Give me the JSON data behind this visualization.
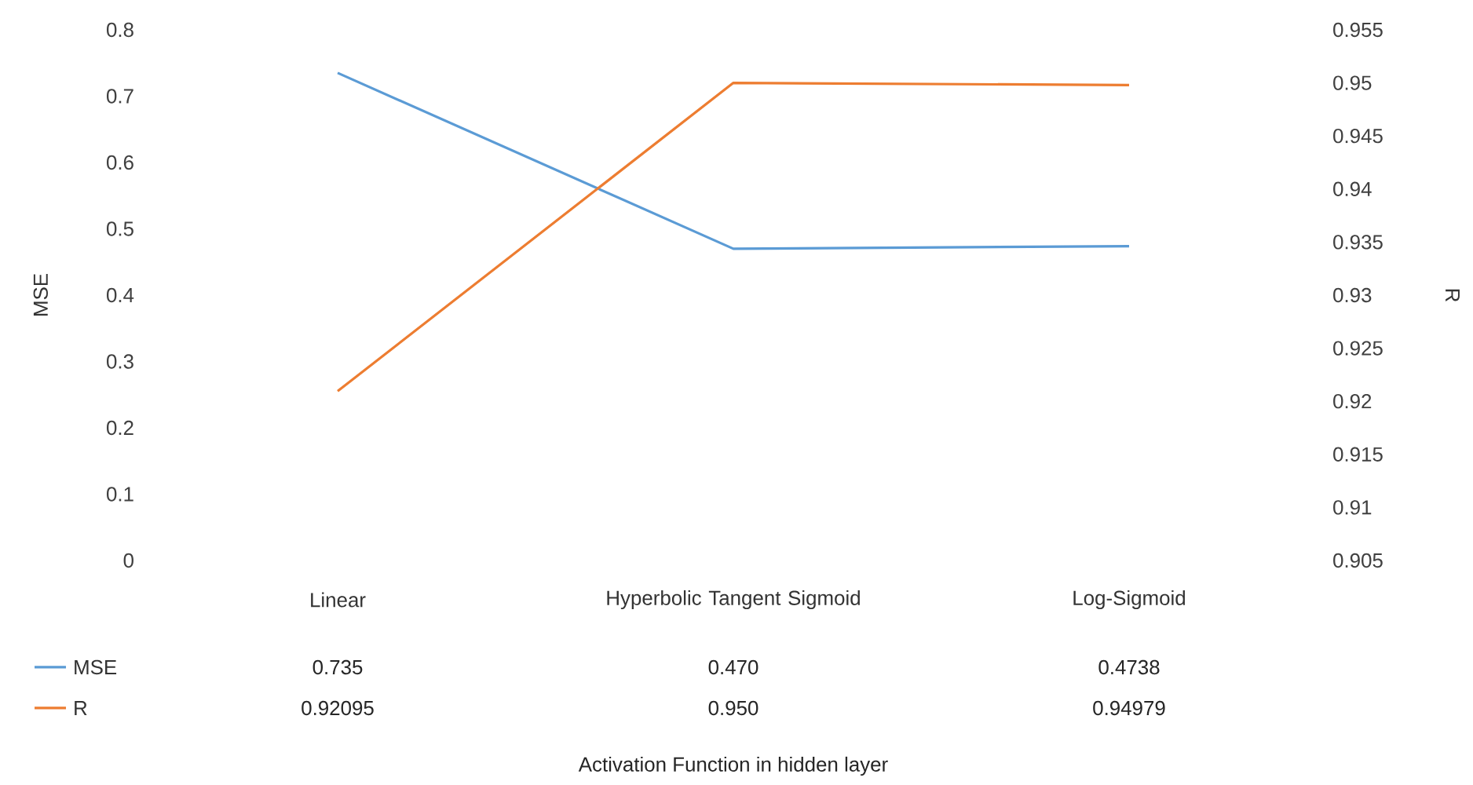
{
  "chart_data": {
    "type": "line",
    "annotations": [
      "Activation Function in hidden layer"
    ],
    "ylabel": "MSE",
    "y2label": "R",
    "categories": [
      "Linear",
      "Hyperbolic Tangent Sigmoid",
      "Log-Sigmoid"
    ],
    "series": [
      {
        "name": "MSE",
        "color": "#5b9bd5",
        "values": [
          0.735,
          0.47,
          0.4738
        ],
        "value_labels": [
          "0.735",
          "0.470",
          "0.4738"
        ]
      },
      {
        "name": "R",
        "color": "#ed7d31",
        "axis": "y2",
        "values": [
          0.92095,
          0.95,
          0.94979
        ],
        "value_labels": [
          "0.92095",
          "0.950",
          "0.94979"
        ]
      }
    ],
    "ylim": [
      0,
      0.8
    ],
    "yticks": [
      0,
      0.1,
      0.2,
      0.3,
      0.4,
      0.5,
      0.6,
      0.7,
      0.8
    ],
    "y2lim": [
      0.905,
      0.955
    ],
    "y2ticks": [
      0.905,
      0.91,
      0.915,
      0.92,
      0.925,
      0.93,
      0.935,
      0.94,
      0.945,
      0.95,
      0.955
    ],
    "grid": false,
    "legend": "bottom",
    "marker": "none",
    "line_style": "solid"
  }
}
